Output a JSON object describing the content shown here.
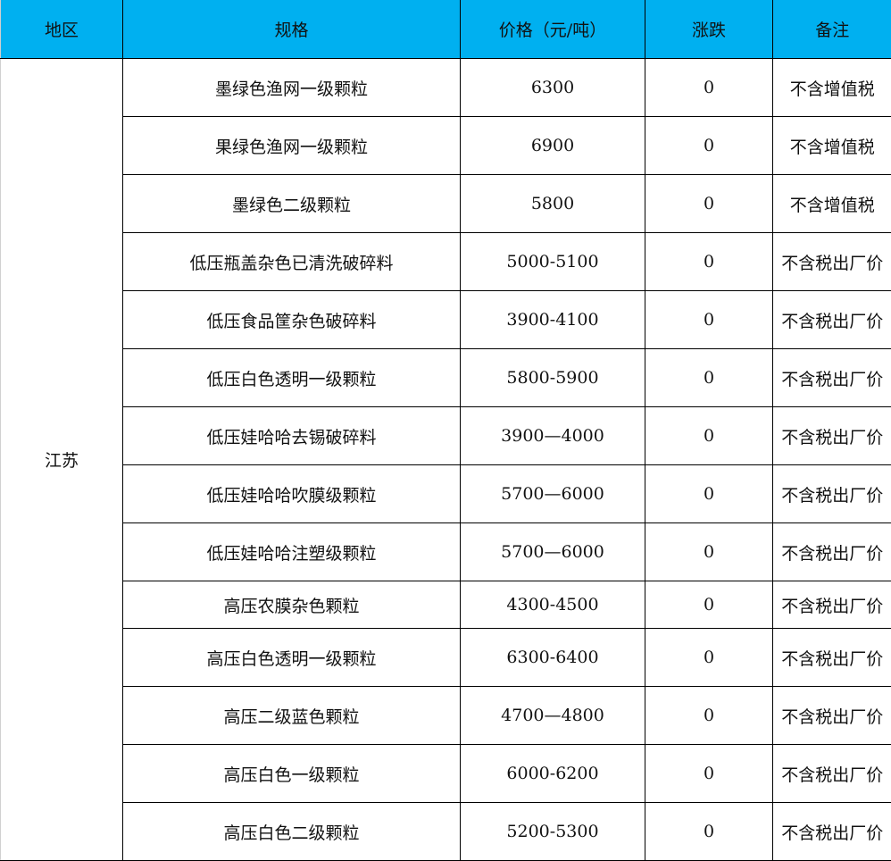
{
  "header": {
    "color": "#00b0f0",
    "columns": [
      "地区",
      "规格",
      "价格（元/吨）",
      "涨跌",
      "备注"
    ]
  },
  "region": "江苏",
  "rows": [
    {
      "spec": "墨绿色渔网一级颗粒",
      "price": "6300",
      "change": "0",
      "note": "不含增值税"
    },
    {
      "spec": "果绿色渔网一级颗粒",
      "price": "6900",
      "change": "0",
      "note": "不含增值税"
    },
    {
      "spec": "墨绿色二级颗粒",
      "price": "5800",
      "change": "0",
      "note": "不含增值税"
    },
    {
      "spec": "低压瓶盖杂色已清洗破碎料",
      "price": "5000-5100",
      "change": "0",
      "note": "不含税出厂价"
    },
    {
      "spec": "低压食品筐杂色破碎料",
      "price": "3900-4100",
      "change": "0",
      "note": "不含税出厂价"
    },
    {
      "spec": "低压白色透明一级颗粒",
      "price": "5800-5900",
      "change": "0",
      "note": "不含税出厂价"
    },
    {
      "spec": "低压娃哈哈去锡破碎料",
      "price": "3900—4000",
      "change": "0",
      "note": "不含税出厂价"
    },
    {
      "spec": "低压娃哈哈吹膜级颗粒",
      "price": "5700—6000",
      "change": "0",
      "note": "不含税出厂价"
    },
    {
      "spec": "低压娃哈哈注塑级颗粒",
      "price": "5700—6000",
      "change": "0",
      "note": "不含税出厂价"
    },
    {
      "spec": "高压农膜杂色颗粒",
      "price": "4300-4500",
      "change": "0",
      "note": "不含税出厂价"
    },
    {
      "spec": "高压白色透明一级颗粒",
      "price": "6300-6400",
      "change": "0",
      "note": "不含税出厂价"
    },
    {
      "spec": "高压二级蓝色颗粒",
      "price": "4700—4800",
      "change": "0",
      "note": "不含税出厂价"
    },
    {
      "spec": "高压白色一级颗粒",
      "price": "6000-6200",
      "change": "0",
      "note": "不含税出厂价"
    },
    {
      "spec": "高压白色二级颗粒",
      "price": "5200-5300",
      "change": "0",
      "note": "不含税出厂价"
    }
  ]
}
